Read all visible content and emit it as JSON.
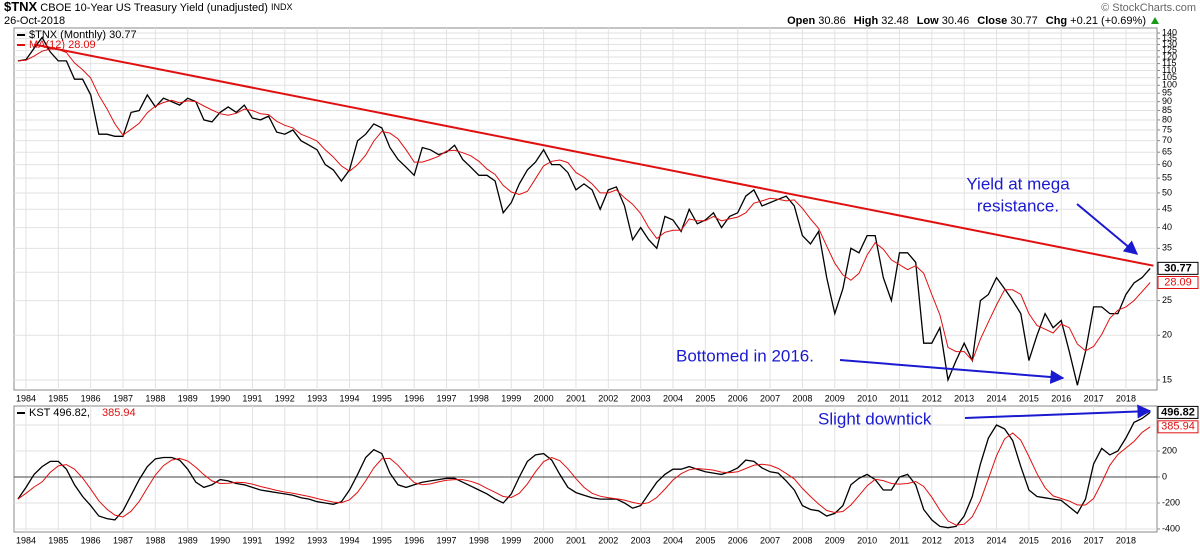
{
  "header": {
    "symbol": "$TNX",
    "description": "CBOE 10-Year US Treasury Yield (unadjusted)",
    "exchange": "INDX",
    "date": "26-Oct-2018",
    "credit": "© StockCharts.com",
    "stats": [
      {
        "label": "Open",
        "value": 30.86
      },
      {
        "label": "High",
        "value": 32.48
      },
      {
        "label": "Low",
        "value": 30.46
      },
      {
        "label": "Close",
        "value": 30.77
      },
      {
        "label": "Chg",
        "value": "+0.21 (+0.69%)"
      }
    ]
  },
  "chart_data": [
    {
      "type": "line",
      "log_scale": true,
      "grid": true,
      "legend": "top-left",
      "legend_layout": "column",
      "annotations": [
        [
          "Yield at mega",
          "resistance."
        ],
        [
          "Bottomed in 2016."
        ]
      ],
      "x": [
        1983.75,
        1984,
        1984.25,
        1984.5,
        1984.75,
        1985,
        1985.25,
        1985.5,
        1985.75,
        1986,
        1986.25,
        1986.5,
        1986.75,
        1987,
        1987.25,
        1987.5,
        1987.75,
        1988,
        1988.25,
        1988.5,
        1988.75,
        1989,
        1989.25,
        1989.5,
        1989.75,
        1990,
        1990.25,
        1990.5,
        1990.75,
        1991,
        1991.25,
        1991.5,
        1991.75,
        1992,
        1992.25,
        1992.5,
        1992.75,
        1993,
        1993.25,
        1993.5,
        1993.75,
        1994,
        1994.25,
        1994.5,
        1994.75,
        1995,
        1995.25,
        1995.5,
        1995.75,
        1996,
        1996.25,
        1996.5,
        1996.75,
        1997,
        1997.25,
        1997.5,
        1997.75,
        1998,
        1998.25,
        1998.5,
        1998.75,
        1999,
        1999.25,
        1999.5,
        1999.75,
        2000,
        2000.25,
        2000.5,
        2000.75,
        2001,
        2001.25,
        2001.5,
        2001.75,
        2002,
        2002.25,
        2002.5,
        2002.75,
        2003,
        2003.25,
        2003.5,
        2003.75,
        2004,
        2004.25,
        2004.5,
        2004.75,
        2005,
        2005.25,
        2005.5,
        2005.75,
        2006,
        2006.25,
        2006.5,
        2006.75,
        2007,
        2007.25,
        2007.5,
        2007.75,
        2008,
        2008.25,
        2008.5,
        2008.75,
        2009,
        2009.25,
        2009.5,
        2009.75,
        2010,
        2010.25,
        2010.5,
        2010.75,
        2011,
        2011.25,
        2011.5,
        2011.75,
        2012,
        2012.25,
        2012.5,
        2012.75,
        2013,
        2013.25,
        2013.5,
        2013.75,
        2014,
        2014.25,
        2014.5,
        2014.75,
        2015,
        2015.25,
        2015.5,
        2015.75,
        2016,
        2016.25,
        2016.5,
        2016.75,
        2017,
        2017.25,
        2017.5,
        2017.75,
        2018,
        2018.25,
        2018.5,
        2018.75
      ],
      "series": [
        {
          "name": "$TNX (Monthly) 30.77",
          "color": "#000000",
          "values": [
            117,
            118,
            127,
            136,
            124,
            117,
            117,
            104,
            104,
            94,
            73,
            73,
            72,
            72,
            84,
            85,
            94,
            87,
            92,
            90,
            88,
            92,
            90,
            80,
            79,
            84,
            87,
            84,
            88,
            81,
            80,
            82,
            74,
            73,
            75,
            70,
            68,
            66,
            60,
            58,
            54,
            58,
            70,
            73,
            78,
            76,
            67,
            62,
            59,
            56,
            67,
            66,
            64,
            65,
            68,
            62,
            59,
            56,
            56,
            54,
            44,
            47,
            53,
            58,
            61,
            66,
            60,
            60,
            57,
            51,
            53,
            51,
            45,
            51,
            52,
            46,
            37,
            40,
            37,
            35,
            43,
            42,
            39,
            45,
            41,
            42,
            44,
            40,
            43,
            44,
            49,
            51,
            46,
            47,
            48,
            49,
            46,
            38,
            36,
            39,
            29,
            23,
            27,
            35,
            34,
            38,
            38,
            29,
            25,
            34,
            34,
            32,
            19,
            19,
            21,
            15,
            17,
            19,
            17,
            25,
            26,
            29,
            27,
            25,
            23,
            17,
            20,
            23,
            21,
            22,
            18,
            14.5,
            18,
            24,
            24,
            23,
            23,
            26,
            28,
            29,
            30.77
          ]
        },
        {
          "name": "MA(12) 28.09",
          "color": "#e01010",
          "values": [
            117,
            117.5,
            120.7,
            124.5,
            126.3,
            126,
            123.5,
            115.5,
            110.5,
            104.8,
            93.8,
            86,
            78,
            72.5,
            75.3,
            78.3,
            83.8,
            87.5,
            89.5,
            90.8,
            89.3,
            90.5,
            90,
            87.5,
            85.3,
            83.3,
            82.5,
            83.5,
            85.8,
            85,
            83.3,
            82.8,
            79.3,
            77.3,
            76,
            73,
            71.5,
            69.8,
            66,
            63,
            59.5,
            57.5,
            60,
            63.8,
            69.8,
            74.3,
            73.5,
            70.8,
            66,
            61,
            61,
            62,
            63.3,
            65.5,
            65.8,
            64.8,
            63.5,
            61.3,
            58.3,
            56.3,
            52.5,
            50.3,
            49.5,
            50.5,
            54.8,
            59.5,
            61.3,
            61.8,
            60.8,
            57,
            55.3,
            53,
            50,
            50,
            51,
            48.5,
            46.5,
            43.8,
            40,
            37.3,
            38.8,
            39.3,
            39.3,
            42.3,
            41.8,
            41.8,
            43,
            41.8,
            42.3,
            42.8,
            44,
            46.8,
            47.5,
            48.3,
            48,
            47.5,
            47.8,
            45.3,
            42.3,
            39.8,
            35.5,
            31.8,
            29.5,
            28.5,
            29.8,
            33.5,
            36.3,
            34.8,
            32.5,
            31.5,
            30.5,
            31.3,
            29.8,
            26,
            22.8,
            18.5,
            18,
            18,
            17,
            19.5,
            21.8,
            24.3,
            26.8,
            26.8,
            26,
            23,
            21.3,
            20.8,
            20.3,
            21.5,
            21,
            18.9,
            18.1,
            18.6,
            20.1,
            22.3,
            23.5,
            24,
            25,
            26.5,
            28.09
          ]
        }
      ],
      "trendline": {
        "color": "#e01010",
        "x": [
          1984.25,
          2018.85
        ],
        "values": [
          130,
          31.3
        ]
      },
      "xlim": [
        1983.63,
        2018.96
      ],
      "xticks": [
        1984,
        1985,
        1986,
        1987,
        1988,
        1989,
        1990,
        1991,
        1992,
        1993,
        1994,
        1995,
        1996,
        1997,
        1998,
        1999,
        2000,
        2001,
        2002,
        2003,
        2004,
        2005,
        2006,
        2007,
        2008,
        2009,
        2010,
        2011,
        2012,
        2013,
        2014,
        2015,
        2016,
        2017,
        2018
      ],
      "ylim": [
        14.06,
        144.6
      ],
      "yticks": [
        15,
        20,
        25,
        30,
        35,
        40,
        45,
        50,
        55,
        60,
        65,
        70,
        75,
        80,
        85,
        90,
        95,
        100,
        105,
        110,
        115,
        120,
        125,
        130,
        135,
        140
      ]
    },
    {
      "type": "line",
      "grid": true,
      "zero_line": true,
      "legend": "top-left",
      "legend_layout": "row",
      "annotations": [
        [
          "Slight downtick"
        ]
      ],
      "x": [
        1983.75,
        1984,
        1984.25,
        1984.5,
        1984.75,
        1985,
        1985.25,
        1985.5,
        1985.75,
        1986,
        1986.25,
        1986.5,
        1986.75,
        1987,
        1987.25,
        1987.5,
        1987.75,
        1988,
        1988.25,
        1988.5,
        1988.75,
        1989,
        1989.25,
        1989.5,
        1989.75,
        1990,
        1990.25,
        1990.5,
        1990.75,
        1991,
        1991.25,
        1991.5,
        1991.75,
        1992,
        1992.25,
        1992.5,
        1992.75,
        1993,
        1993.25,
        1993.5,
        1993.75,
        1994,
        1994.25,
        1994.5,
        1994.75,
        1995,
        1995.25,
        1995.5,
        1995.75,
        1996,
        1996.25,
        1996.5,
        1996.75,
        1997,
        1997.25,
        1997.5,
        1997.75,
        1998,
        1998.25,
        1998.5,
        1998.75,
        1999,
        1999.25,
        1999.5,
        1999.75,
        2000,
        2000.25,
        2000.5,
        2000.75,
        2001,
        2001.25,
        2001.5,
        2001.75,
        2002,
        2002.25,
        2002.5,
        2002.75,
        2003,
        2003.25,
        2003.5,
        2003.75,
        2004,
        2004.25,
        2004.5,
        2004.75,
        2005,
        2005.25,
        2005.5,
        2005.75,
        2006,
        2006.25,
        2006.5,
        2006.75,
        2007,
        2007.25,
        2007.5,
        2007.75,
        2008,
        2008.25,
        2008.5,
        2008.75,
        2009,
        2009.25,
        2009.5,
        2009.75,
        2010,
        2010.25,
        2010.5,
        2010.75,
        2011,
        2011.25,
        2011.5,
        2011.75,
        2012,
        2012.25,
        2012.5,
        2012.75,
        2013,
        2013.25,
        2013.5,
        2013.75,
        2014,
        2014.25,
        2014.5,
        2014.75,
        2015,
        2015.25,
        2015.5,
        2015.75,
        2016,
        2016.25,
        2016.5,
        2016.75,
        2017,
        2017.25,
        2017.5,
        2017.75,
        2018,
        2018.25,
        2018.5,
        2018.75
      ],
      "series": [
        {
          "name": "KST 496.82,",
          "color": "#000000",
          "values": [
            -170,
            -80,
            20,
            80,
            120,
            120,
            60,
            -60,
            -150,
            -220,
            -300,
            -320,
            -330,
            -260,
            -140,
            -20,
            80,
            140,
            150,
            150,
            130,
            60,
            -40,
            -80,
            -60,
            -20,
            -30,
            -50,
            -60,
            -80,
            -100,
            -110,
            -120,
            -130,
            -140,
            -160,
            -170,
            -190,
            -200,
            -210,
            -190,
            -100,
            20,
            150,
            210,
            180,
            30,
            -60,
            -80,
            -60,
            -40,
            -30,
            -20,
            -10,
            -10,
            -40,
            -70,
            -100,
            -130,
            -170,
            -200,
            -130,
            0,
            120,
            170,
            180,
            130,
            20,
            -80,
            -120,
            -140,
            -160,
            -170,
            -170,
            -170,
            -200,
            -240,
            -220,
            -130,
            -40,
            20,
            60,
            60,
            80,
            60,
            40,
            30,
            20,
            40,
            70,
            130,
            120,
            70,
            40,
            30,
            -30,
            -100,
            -220,
            -250,
            -260,
            -300,
            -280,
            -220,
            -60,
            -10,
            20,
            -20,
            -100,
            -100,
            0,
            20,
            -60,
            -250,
            -330,
            -380,
            -390,
            -380,
            -300,
            -150,
            100,
            300,
            400,
            370,
            280,
            80,
            -100,
            -150,
            -160,
            -170,
            -180,
            -230,
            -280,
            -170,
            100,
            220,
            170,
            200,
            300,
            420,
            450,
            496.82
          ]
        },
        {
          "name": "385.94",
          "color": "#e01010",
          "values": [
            -170,
            -125,
            -77,
            -38,
            35,
            85,
            95,
            60,
            -8,
            -93,
            -183,
            -248,
            -293,
            -308,
            -263,
            -188,
            -85,
            15,
            88,
            130,
            143,
            123,
            75,
            18,
            -30,
            -50,
            -48,
            -40,
            -43,
            -55,
            -73,
            -88,
            -103,
            -115,
            -125,
            -138,
            -150,
            -165,
            -180,
            -193,
            -198,
            -175,
            -118,
            -30,
            70,
            140,
            143,
            90,
            18,
            -43,
            -60,
            -53,
            -38,
            -25,
            -20,
            -20,
            -33,
            -55,
            -88,
            -118,
            -150,
            -158,
            -125,
            -53,
            40,
            118,
            150,
            125,
            63,
            -13,
            -80,
            -125,
            -148,
            -160,
            -168,
            -178,
            -195,
            -208,
            -198,
            -158,
            -93,
            -23,
            25,
            55,
            65,
            60,
            53,
            38,
            33,
            40,
            65,
            90,
            98,
            90,
            65,
            28,
            -15,
            -88,
            -150,
            -208,
            -258,
            -273,
            -265,
            -215,
            -143,
            -68,
            -18,
            -28,
            -50,
            -55,
            -50,
            -35,
            -73,
            -155,
            -255,
            -338,
            -370,
            -363,
            -305,
            -183,
            -13,
            163,
            293,
            338,
            283,
            158,
            25,
            -83,
            -145,
            -165,
            -185,
            -215,
            -215,
            -165,
            -43,
            90,
            173,
            223,
            273,
            343,
            385.94
          ]
        }
      ],
      "xlim": [
        1983.63,
        2018.96
      ],
      "xticks": [
        1984,
        1985,
        1986,
        1987,
        1988,
        1989,
        1990,
        1991,
        1992,
        1993,
        1994,
        1995,
        1996,
        1997,
        1998,
        1999,
        2000,
        2001,
        2002,
        2003,
        2004,
        2005,
        2006,
        2007,
        2008,
        2009,
        2010,
        2011,
        2012,
        2013,
        2014,
        2015,
        2016,
        2017,
        2018
      ],
      "ylim": [
        -423,
        546
      ],
      "yticks": [
        -400,
        -200,
        0,
        200,
        400
      ]
    }
  ]
}
